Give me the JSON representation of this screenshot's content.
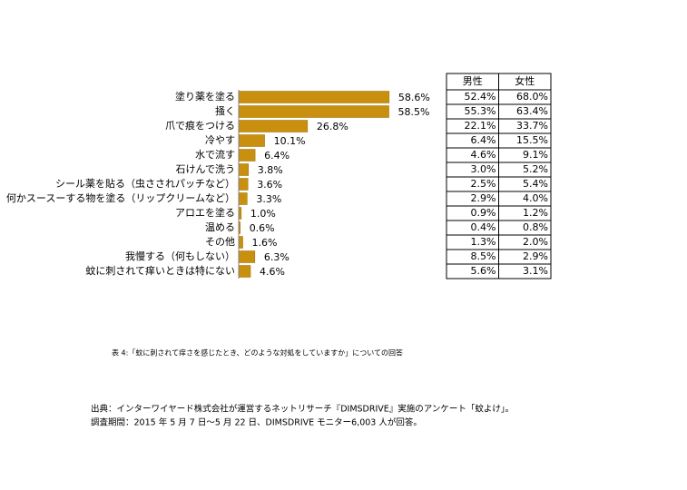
{
  "chart_data": {
    "type": "bar",
    "orientation": "horizontal",
    "categories": [
      "塗り薬を塗る",
      "掻く",
      "爪で痕をつける",
      "冷やす",
      "水で流す",
      "石けんで洗う",
      "シール薬を貼る（虫さされパッチなど）",
      "何かスースーする物を塗る（リップクリームなど）",
      "アロエを塗る",
      "温める",
      "その他",
      "我慢する（何もしない）",
      "蚊に刺されて痒いときは特にない"
    ],
    "values": [
      58.6,
      58.5,
      26.8,
      10.1,
      6.4,
      3.8,
      3.6,
      3.3,
      1.0,
      0.6,
      1.6,
      6.3,
      4.6
    ],
    "value_labels": [
      "58.6%",
      "58.5%",
      "26.8%",
      "10.1%",
      "6.4%",
      "3.8%",
      "3.6%",
      "3.3%",
      "1.0%",
      "0.6%",
      "1.6%",
      "6.3%",
      "4.6%"
    ],
    "color": "#c8900e",
    "caption": "表 4:「蚊に刺されて痒さを感じたとき、どのような対処をしていますか」についての回答",
    "source": [
      "出典：インターワイヤード株式会社が運営するネットリサーチ『DIMSDRIVE』実施のアンケート「蚊よけ」。",
      "調査期間：2015 年 5 月 7 日～5 月 22 日、DIMSDRIVE モニター6,003 人が回答。"
    ]
  },
  "table": {
    "header": [
      "男性",
      "女性"
    ],
    "rows": [
      [
        "52.4%",
        "68.0%"
      ],
      [
        "55.3%",
        "63.4%"
      ],
      [
        "22.1%",
        "33.7%"
      ],
      [
        "6.4%",
        "15.5%"
      ],
      [
        "4.6%",
        "9.1%"
      ],
      [
        "3.0%",
        "5.2%"
      ],
      [
        "2.5%",
        "5.4%"
      ],
      [
        "2.9%",
        "4.0%"
      ],
      [
        "0.9%",
        "1.2%"
      ],
      [
        "0.4%",
        "0.8%"
      ],
      [
        "1.3%",
        "2.0%"
      ],
      [
        "8.5%",
        "2.9%"
      ],
      [
        "5.6%",
        "3.1%"
      ]
    ]
  }
}
